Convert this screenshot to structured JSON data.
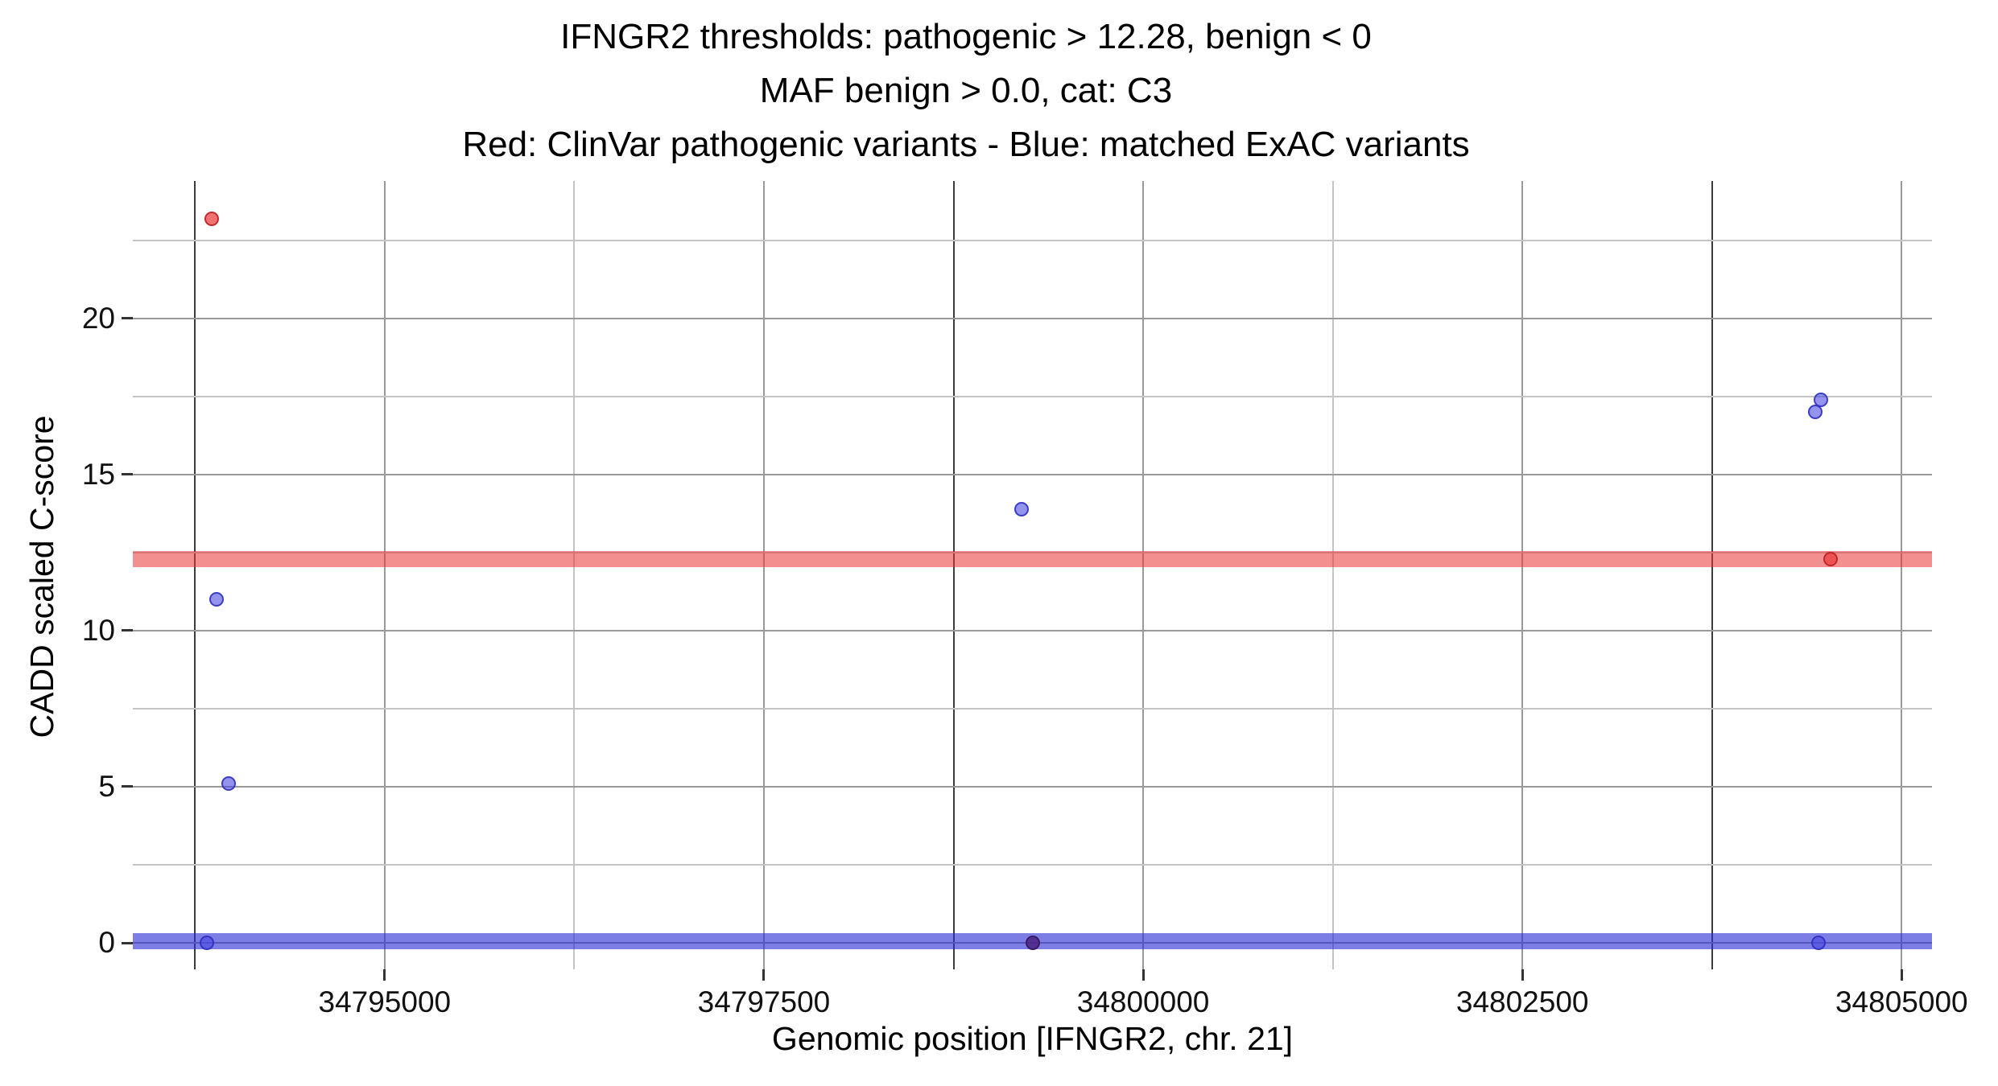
{
  "chart_data": {
    "type": "scatter",
    "title": {
      "line1": "IFNGR2 thresholds: pathogenic > 12.28, benign < 0",
      "line2": "MAF benign > 0.0, cat: C3",
      "line3": "Red: ClinVar pathogenic variants - Blue: matched ExAC variants"
    },
    "xlabel": "Genomic position [IFNGR2, chr. 21]",
    "ylabel": "CADD scaled C-score",
    "xlim": [
      34793340,
      34805200
    ],
    "ylim": [
      -0.85,
      24.4
    ],
    "grid": true,
    "legend_position": "none",
    "x_major_ticks": [
      34795000,
      34797500,
      34800000,
      34802500,
      34805000
    ],
    "x_tick_labels": [
      "34795000",
      "34797500",
      "34800000",
      "34802500",
      "34805000"
    ],
    "y_major_ticks": [
      0,
      5,
      10,
      15,
      20
    ],
    "y_tick_labels": [
      "0",
      "5",
      "10",
      "15",
      "20"
    ],
    "x_gridlines": [
      {
        "value": 34793750,
        "color": "#3c3c3c"
      },
      {
        "value": 34795000,
        "color": "#999999"
      },
      {
        "value": 34796250,
        "color": "#c4c4c4"
      },
      {
        "value": 34797500,
        "color": "#999999"
      },
      {
        "value": 34798750,
        "color": "#3c3c3c"
      },
      {
        "value": 34800000,
        "color": "#999999"
      },
      {
        "value": 34801250,
        "color": "#c4c4c4"
      },
      {
        "value": 34802500,
        "color": "#999999"
      },
      {
        "value": 34803750,
        "color": "#3c3c3c"
      },
      {
        "value": 34805000,
        "color": "#999999"
      }
    ],
    "y_gridlines": [
      {
        "value": 0,
        "color": "#999999"
      },
      {
        "value": 2.5,
        "color": "#c4c4c4"
      },
      {
        "value": 5,
        "color": "#999999"
      },
      {
        "value": 7.5,
        "color": "#c4c4c4"
      },
      {
        "value": 10,
        "color": "#999999"
      },
      {
        "value": 12.5,
        "color": "#c4c4c4"
      },
      {
        "value": 15,
        "color": "#999999"
      },
      {
        "value": 17.5,
        "color": "#c4c4c4"
      },
      {
        "value": 20,
        "color": "#999999"
      },
      {
        "value": 22.5,
        "color": "#c4c4c4"
      }
    ],
    "thresholds": {
      "pathogenic": {
        "value": 12.28,
        "color": "#e83535",
        "opacity": 0.55,
        "thickness": 20
      },
      "benign": {
        "value": 0.05,
        "color": "#2d2dd6",
        "opacity": 0.62,
        "thickness": 20
      }
    },
    "point_styles": {
      "pathogenic": {
        "fill": "rgba(235,60,60,0.72)",
        "stroke": "rgba(190,35,35,0.9)"
      },
      "benign": {
        "fill": "rgba(70,70,225,0.58)",
        "stroke": "rgba(45,45,190,0.85)"
      },
      "overlap": {
        "fill": "rgba(75,35,130,0.85)",
        "stroke": "rgba(55,25,100,0.95)"
      }
    },
    "series": [
      {
        "name": "ClinVar pathogenic variants",
        "color": "red"
      },
      {
        "name": "matched ExAC variants",
        "color": "blue"
      }
    ],
    "points": [
      {
        "x": 34793860,
        "y": 23.2,
        "series": "pathogenic"
      },
      {
        "x": 34793890,
        "y": 11.0,
        "series": "benign"
      },
      {
        "x": 34793970,
        "y": 5.1,
        "series": "benign"
      },
      {
        "x": 34793830,
        "y": 0.0,
        "series": "benign"
      },
      {
        "x": 34799200,
        "y": 13.9,
        "series": "benign"
      },
      {
        "x": 34799270,
        "y": 0.0,
        "series": "overlap"
      },
      {
        "x": 34804430,
        "y": 17.0,
        "series": "benign"
      },
      {
        "x": 34804470,
        "y": 17.4,
        "series": "benign"
      },
      {
        "x": 34804450,
        "y": 0.0,
        "series": "benign"
      },
      {
        "x": 34804530,
        "y": 12.28,
        "series": "pathogenic"
      }
    ]
  }
}
